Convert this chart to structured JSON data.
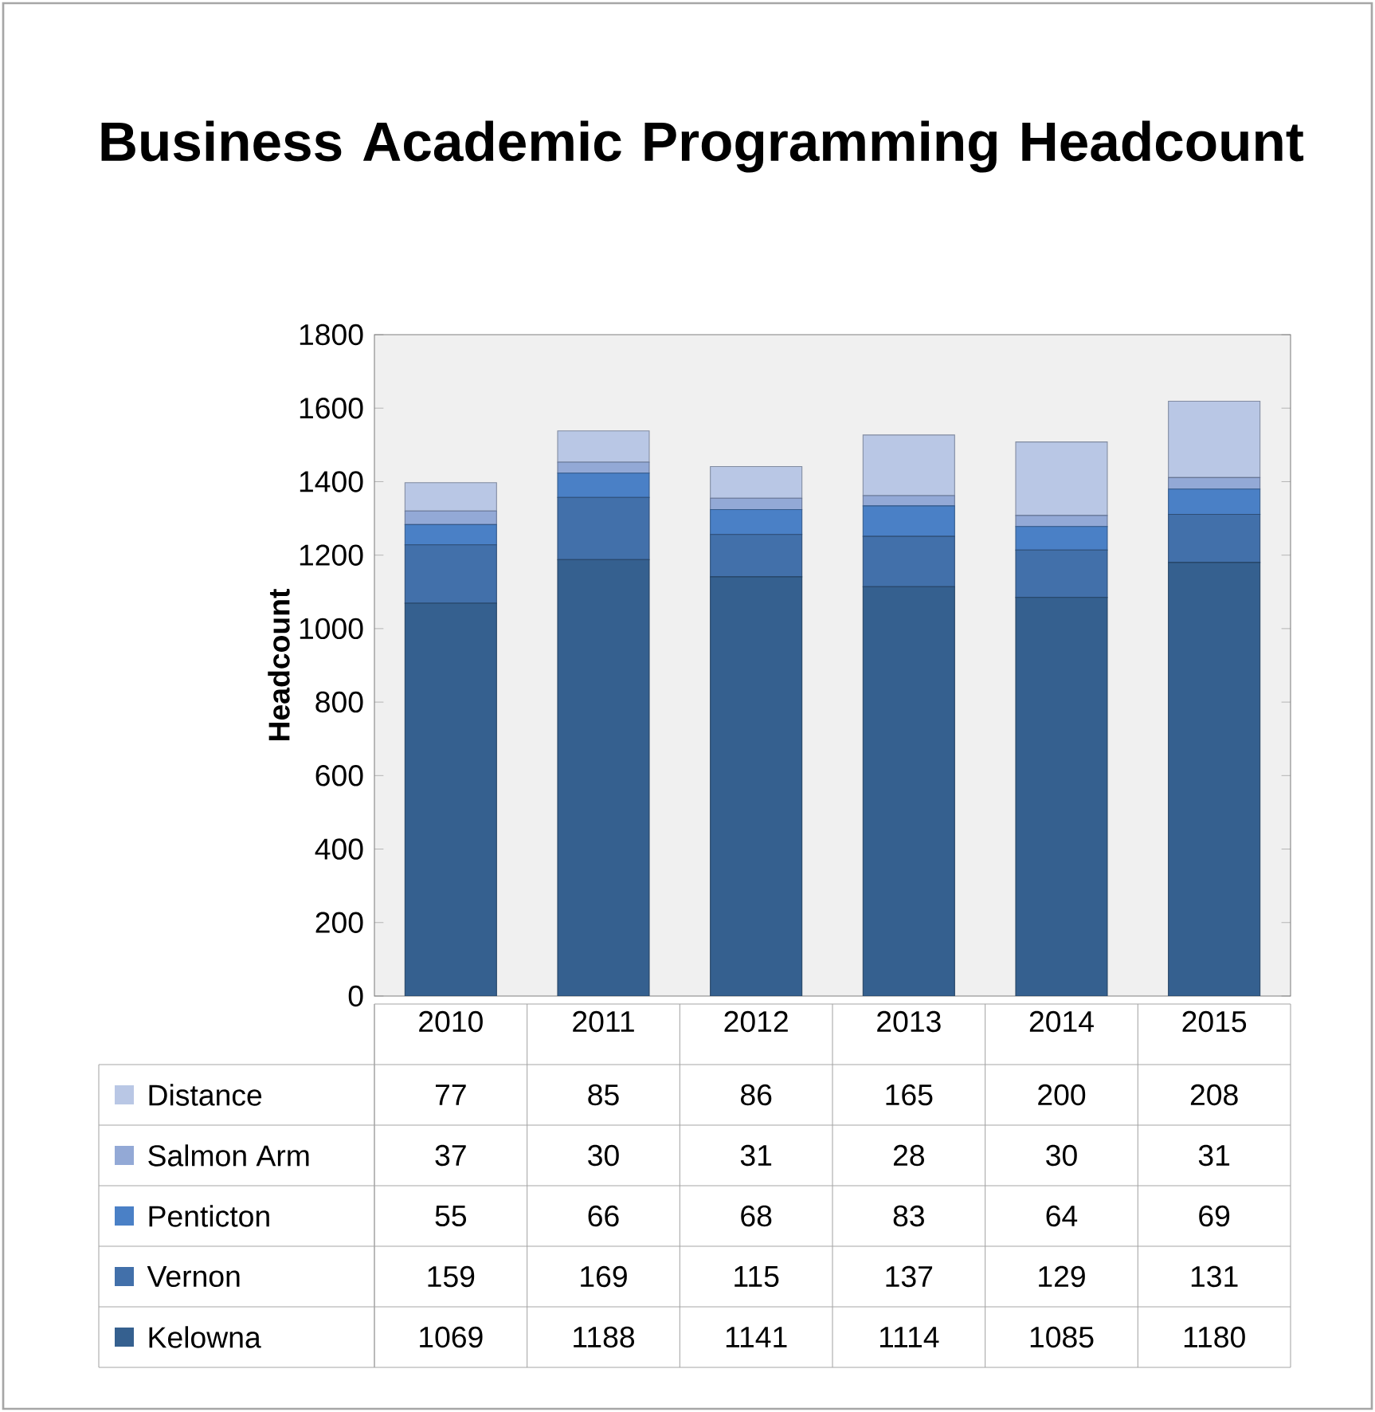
{
  "chart_data": {
    "type": "bar",
    "stacked": true,
    "title": "Business Academic Programming Headcount",
    "ylabel": "Headcount",
    "categories": [
      "2010",
      "2011",
      "2012",
      "2013",
      "2014",
      "2015"
    ],
    "ylim": [
      0,
      1800
    ],
    "yticks": [
      0,
      200,
      400,
      600,
      800,
      1000,
      1200,
      1400,
      1600,
      1800
    ],
    "data_labels": true,
    "legend": "bottom",
    "series": [
      {
        "name": "Kelowna",
        "color": "#35608f",
        "values": [
          1069,
          1188,
          1141,
          1114,
          1085,
          1180
        ]
      },
      {
        "name": "Vernon",
        "color": "#4270aa",
        "values": [
          159,
          169,
          115,
          137,
          129,
          131
        ]
      },
      {
        "name": "Penticton",
        "color": "#4a80c6",
        "values": [
          55,
          66,
          68,
          83,
          64,
          69
        ]
      },
      {
        "name": "Salmon Arm",
        "color": "#93a9d6",
        "values": [
          37,
          30,
          31,
          28,
          30,
          31
        ]
      },
      {
        "name": "Distance",
        "color": "#b9c7e5",
        "values": [
          77,
          85,
          86,
          165,
          200,
          208
        ]
      }
    ]
  }
}
